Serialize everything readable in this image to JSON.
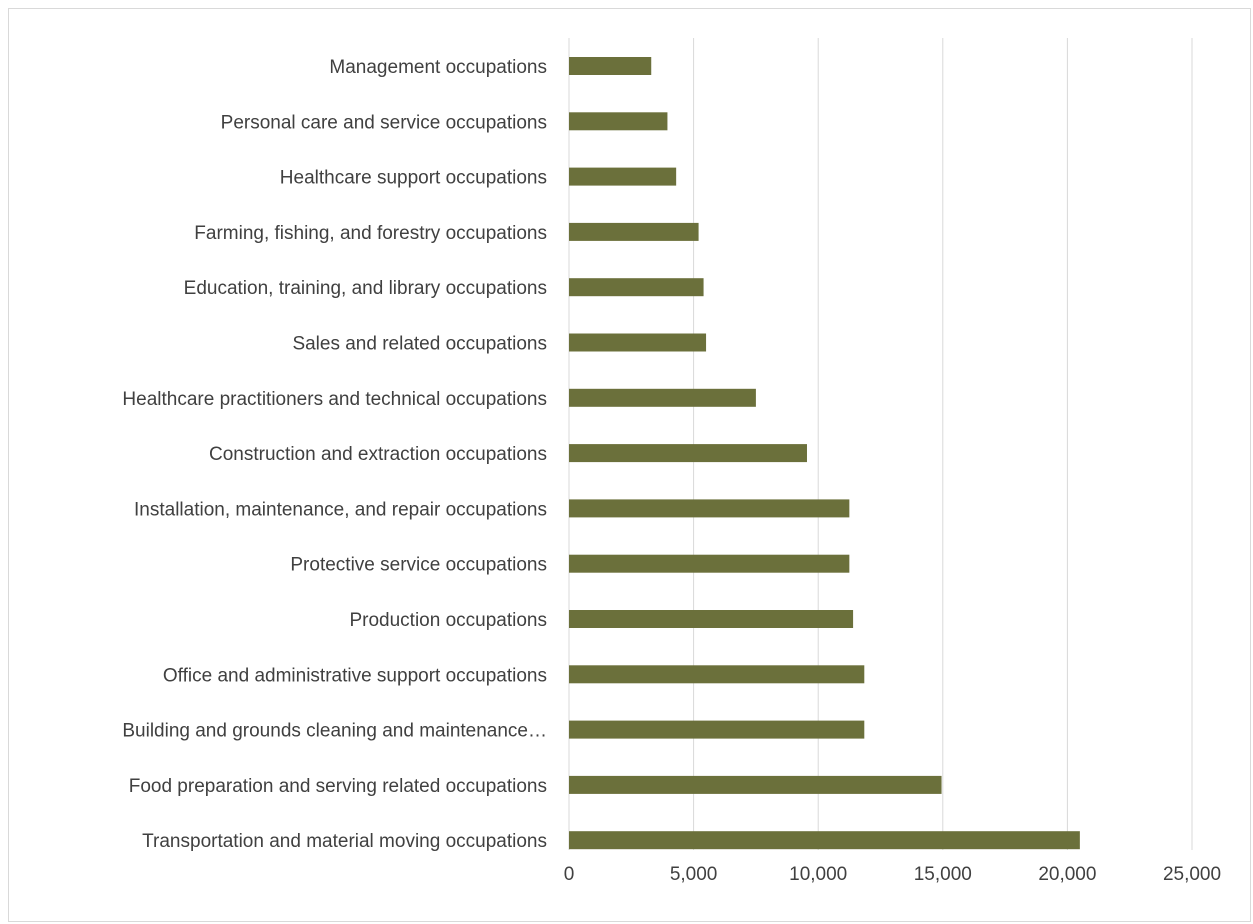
{
  "chart_data": {
    "type": "bar",
    "orientation": "horizontal",
    "categories": [
      "Management occupations",
      "Personal care and service occupations",
      "Healthcare support occupations",
      "Farming, fishing, and forestry occupations",
      "Education, training, and library occupations",
      "Sales and related occupations",
      "Healthcare practitioners and technical occupations",
      "Construction and extraction occupations",
      "Installation, maintenance, and repair occupations",
      "Protective service occupations",
      "Production occupations",
      "Office and administrative support occupations",
      "Building and grounds cleaning and maintenance…",
      "Food preparation and serving related occupations",
      "Transportation and material moving occupations"
    ],
    "values": [
      3300,
      3950,
      4300,
      5200,
      5400,
      5500,
      7500,
      9550,
      11250,
      11250,
      11400,
      11850,
      11850,
      14950,
      20500
    ],
    "xlim": [
      0,
      25000
    ],
    "xticks": [
      0,
      5000,
      10000,
      15000,
      20000,
      25000
    ],
    "xtick_labels": [
      "0",
      "5,000",
      "10,000",
      "15,000",
      "20,000",
      "25,000"
    ],
    "bar_color": "#6b703b",
    "grid": "vertical",
    "grid_color": "#d9d9d9",
    "title": "",
    "xlabel": "",
    "ylabel": "",
    "legend": "none"
  }
}
